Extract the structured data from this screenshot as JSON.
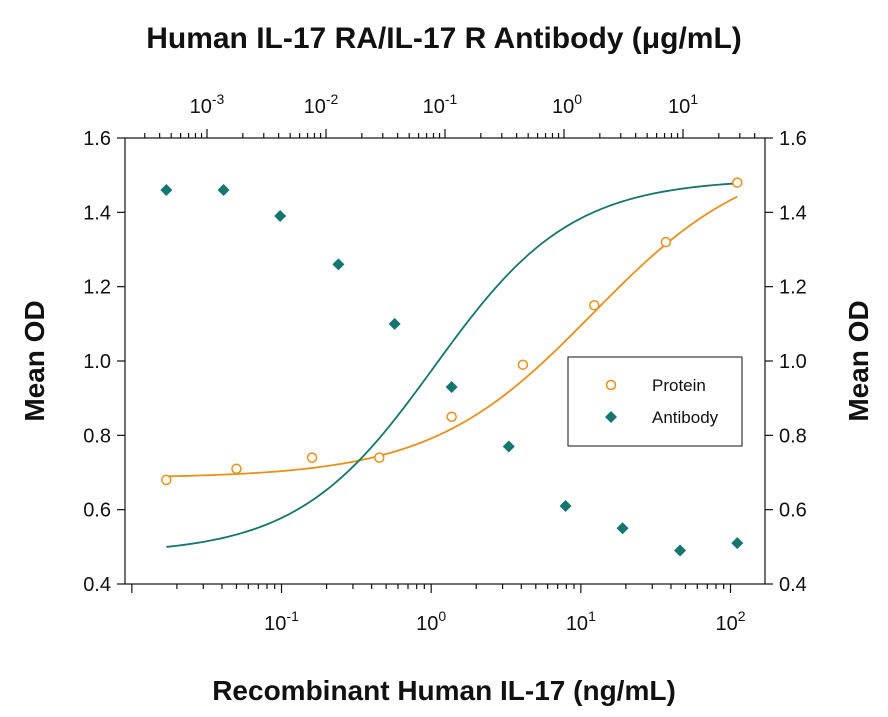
{
  "chart_data": {
    "type": "scatter",
    "title": "Human IL-17 RA/IL-17 R Antibody (μg/mL)",
    "xlabel": "Recombinant Human IL-17 (ng/mL)",
    "ylabel": "Mean OD",
    "y2label": "Mean OD",
    "xscale": "log",
    "xlim": [
      0.009,
      170
    ],
    "ylim": [
      0.4,
      1.6
    ],
    "yticks": [
      "0.4",
      "0.6",
      "0.8",
      "1.0",
      "1.2",
      "1.4",
      "1.6"
    ],
    "xticks_bottom": [
      {
        "value": 0.1,
        "base": "10",
        "exp": "-1"
      },
      {
        "value": 1,
        "base": "10",
        "exp": "0"
      },
      {
        "value": 10,
        "base": "10",
        "exp": "1"
      },
      {
        "value": 100,
        "base": "10",
        "exp": "2"
      }
    ],
    "xticks_top": [
      {
        "base": "10",
        "exp": "-3"
      },
      {
        "base": "10",
        "exp": "-2"
      },
      {
        "base": "10",
        "exp": "-1"
      },
      {
        "base": "10",
        "exp": "0"
      },
      {
        "base": "10",
        "exp": "1"
      }
    ],
    "grid": false,
    "legend_position": "right",
    "series": [
      {
        "name": "Protein",
        "marker": "open-circle",
        "color": "#e8901a",
        "x": [
          0.017,
          0.05,
          0.16,
          0.45,
          1.37,
          4.1,
          12.3,
          37,
          111
        ],
        "y": [
          0.68,
          0.71,
          0.74,
          0.74,
          0.85,
          0.99,
          1.15,
          1.32,
          1.48
        ],
        "fit": {
          "bottom": 0.685,
          "top": 1.57,
          "ec50": 12.0,
          "hill": 0.8
        }
      },
      {
        "name": "Antibody",
        "marker": "filled-diamond",
        "color": "#15766f",
        "x": [
          0.017,
          0.041,
          0.098,
          0.24,
          0.57,
          1.37,
          3.3,
          7.9,
          19,
          46,
          111
        ],
        "y": [
          1.46,
          1.46,
          1.39,
          1.26,
          1.1,
          0.93,
          0.77,
          0.61,
          0.55,
          0.49,
          0.51
        ],
        "fit": {
          "bottom": 0.48,
          "top": 1.49,
          "ec50": 1.05,
          "hill": 0.95
        }
      }
    ]
  }
}
